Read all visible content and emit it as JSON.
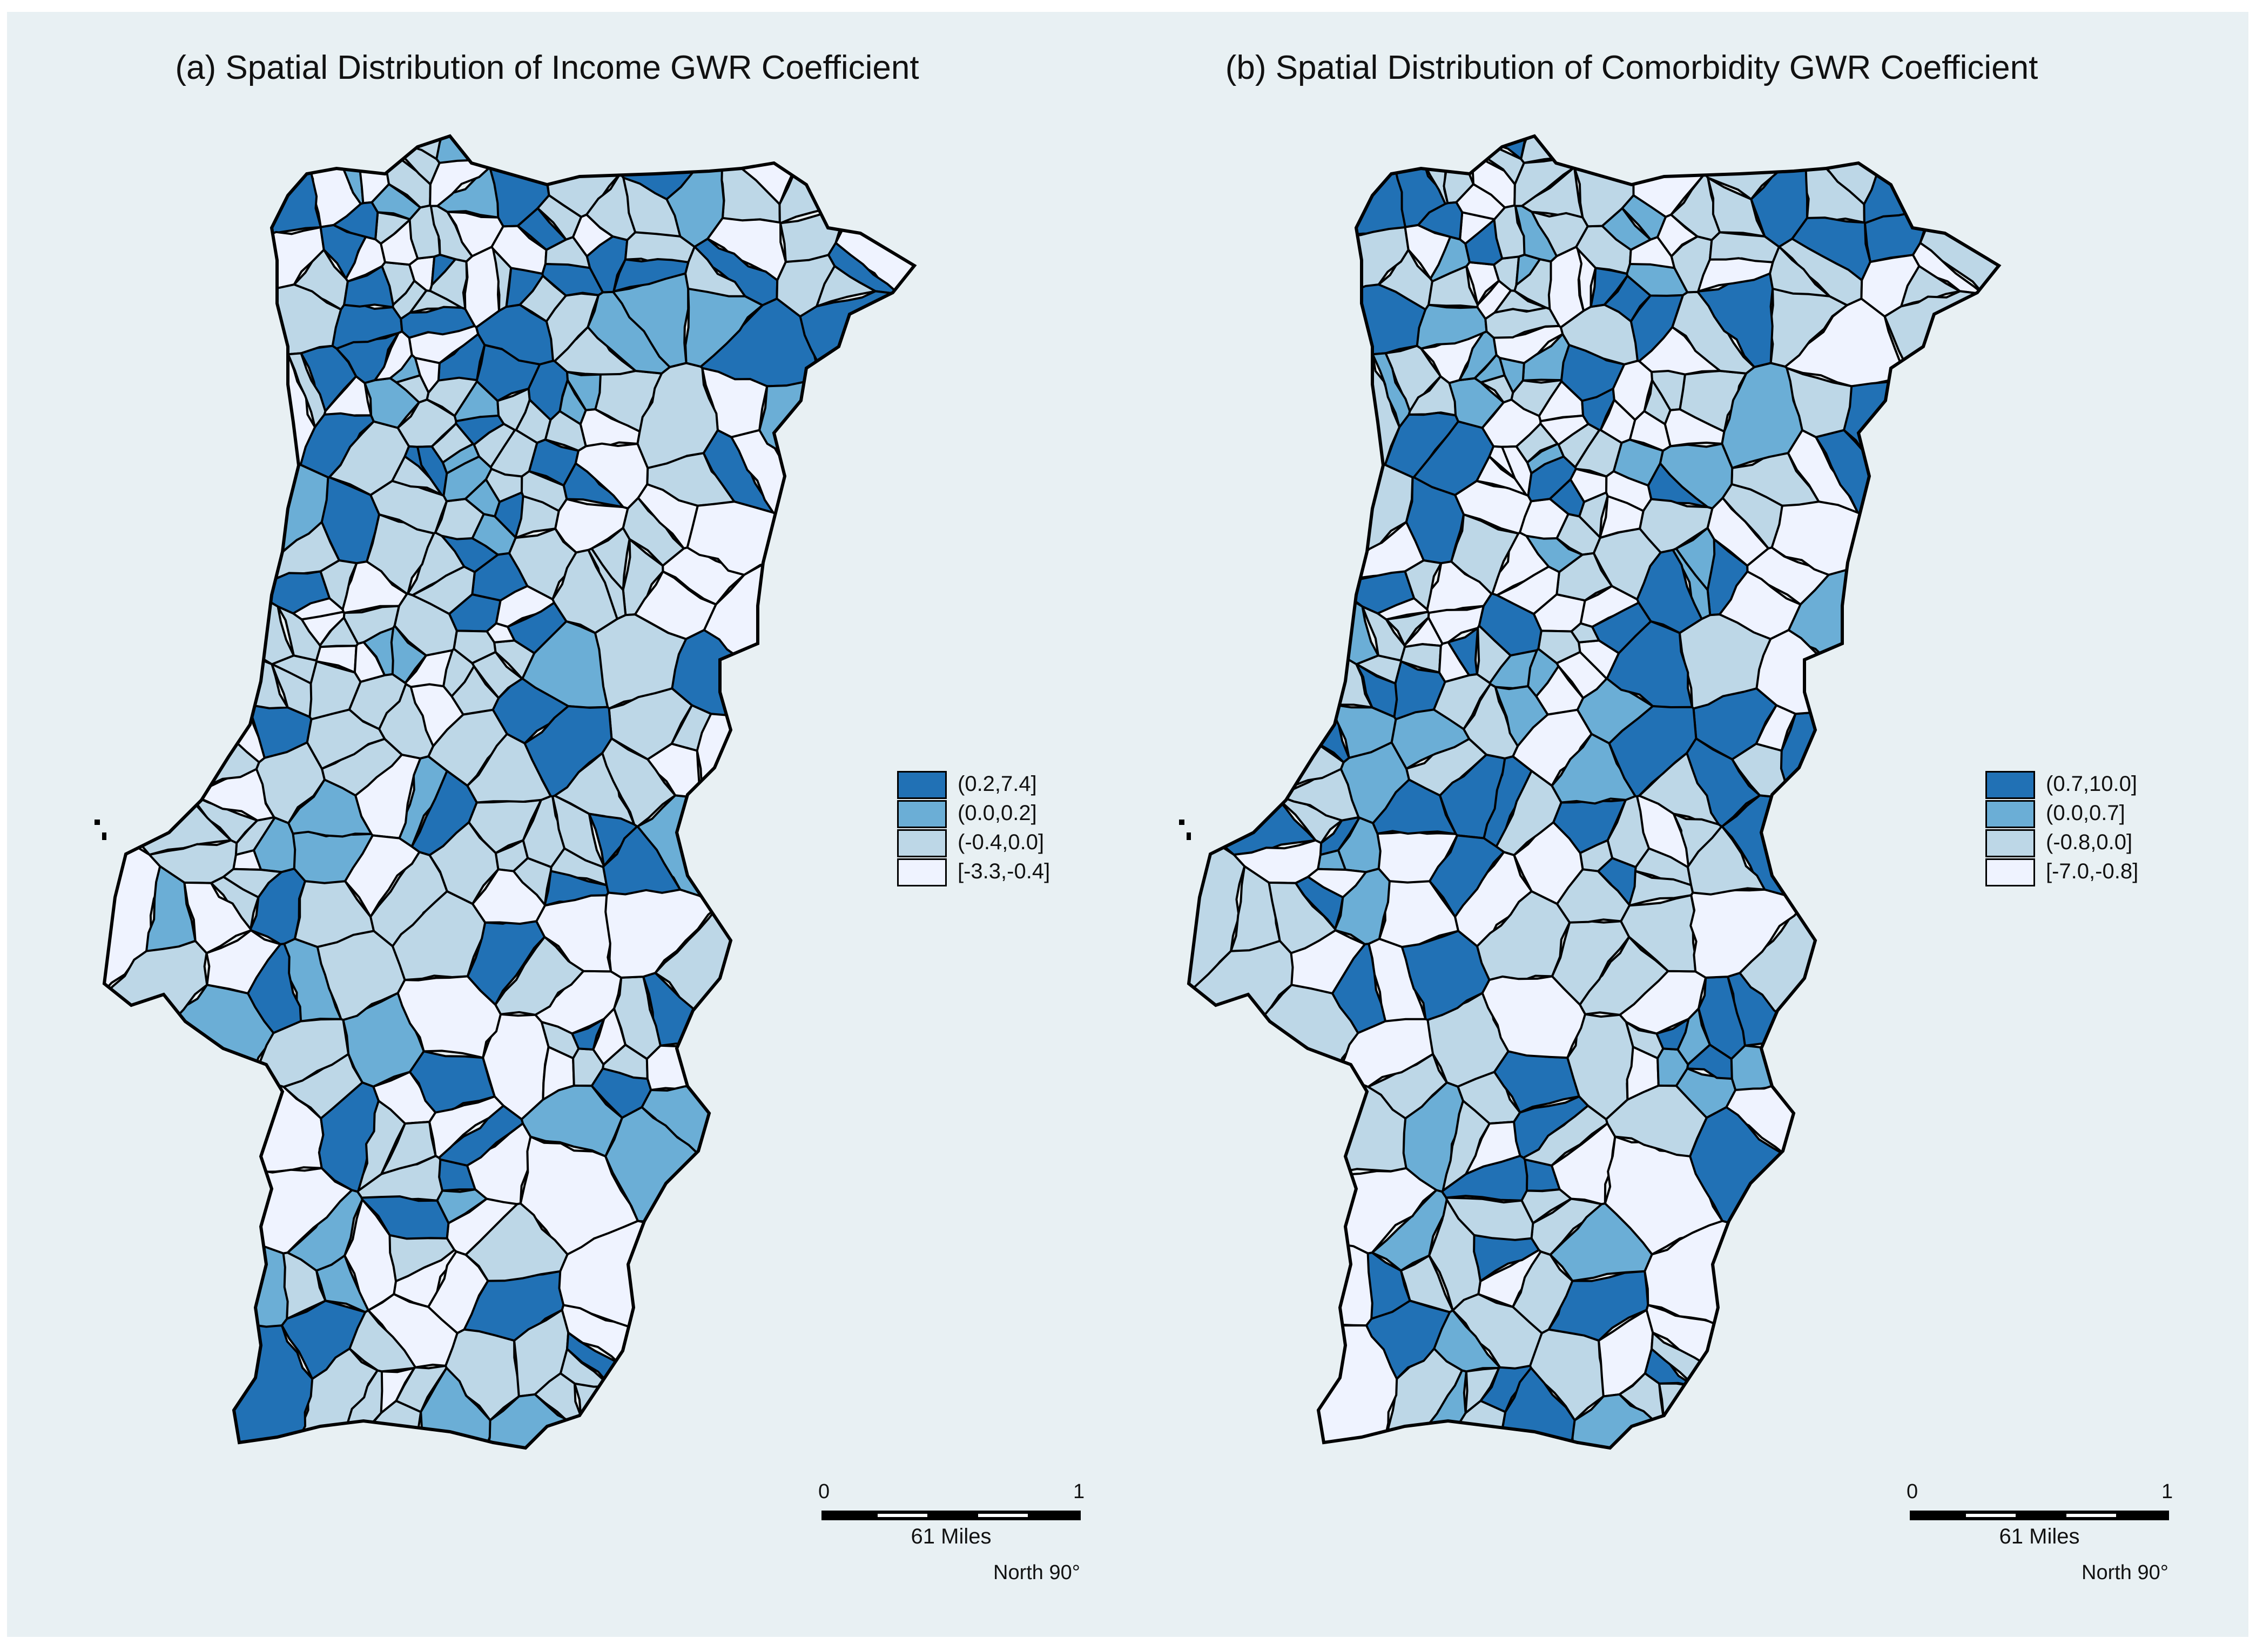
{
  "panels": [
    {
      "id": "a",
      "title": "(a) Spatial Distribution of Income GWR Coefficient",
      "legend": [
        {
          "label": "(0.2,7.4]",
          "color": "#2171b5"
        },
        {
          "label": "(0.0,0.2]",
          "color": "#6baed6"
        },
        {
          "label": "(-0.4,0.0]",
          "color": "#bdd7e7"
        },
        {
          "label": "[-3.3,-0.4]",
          "color": "#eff3ff"
        }
      ],
      "scalebar": {
        "start": "0",
        "end": "1",
        "units": "61 Miles"
      },
      "north": "North 90°"
    },
    {
      "id": "b",
      "title": "(b) Spatial Distribution of Comorbidity GWR Coefficient",
      "legend": [
        {
          "label": "(0.7,10.0]",
          "color": "#2171b5"
        },
        {
          "label": "(0.0,0.7]",
          "color": "#6baed6"
        },
        {
          "label": "(-0.8,0.0]",
          "color": "#bdd7e7"
        },
        {
          "label": "[-7.0,-0.8]",
          "color": "#eff3ff"
        }
      ],
      "scalebar": {
        "start": "0",
        "end": "1",
        "units": "61 Miles"
      },
      "north": "North 90°"
    }
  ],
  "map_region": "Portugal (mainland municipalities)"
}
